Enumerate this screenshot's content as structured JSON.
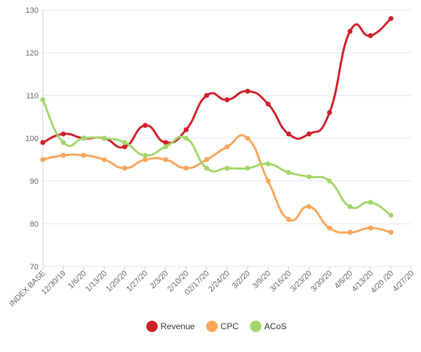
{
  "chart_data": {
    "type": "line",
    "categories": [
      "INDEX BASE",
      "12/30/19",
      "1/6/20",
      "1/13/20",
      "1/20/20",
      "1/27/20",
      "2/3/20",
      "2/10/20",
      "02/17/20",
      "2/24/20",
      "3/2/20",
      "3/9/20",
      "3/16/20",
      "3/23/20",
      "3/30/20",
      "4/6/20",
      "4/13/20",
      "4/20 /20",
      "4/27/20"
    ],
    "series": [
      {
        "name": "Revenue",
        "color": "#d0202a",
        "values": [
          99,
          101,
          100,
          100,
          98,
          103,
          99,
          102,
          110,
          109,
          111,
          108,
          101,
          101,
          106,
          125,
          124,
          128,
          null
        ]
      },
      {
        "name": "CPC",
        "color": "#f9a65a",
        "values": [
          95,
          96,
          96,
          95,
          93,
          95,
          95,
          93,
          95,
          98,
          100,
          90,
          81,
          84,
          79,
          78,
          79,
          78,
          null
        ]
      },
      {
        "name": "ACoS",
        "color": "#a3d66a",
        "values": [
          109,
          99,
          100,
          100,
          99,
          96,
          98,
          100,
          93,
          93,
          93,
          94,
          92,
          91,
          90,
          84,
          85,
          82,
          null
        ]
      }
    ],
    "ylim": [
      70,
      130
    ],
    "yticks": [
      70,
      80,
      90,
      100,
      110,
      120,
      130
    ],
    "grid": true,
    "legend": "bottom"
  }
}
